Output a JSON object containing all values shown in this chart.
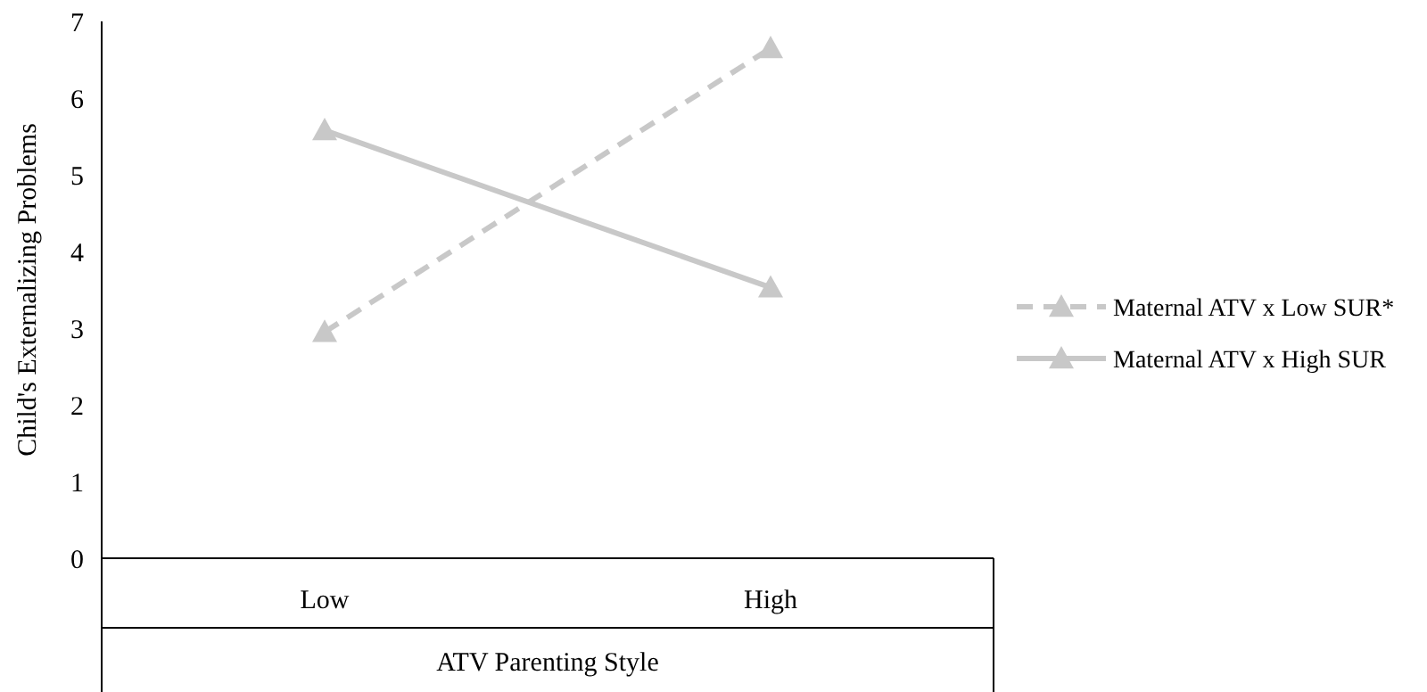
{
  "chart_data": {
    "type": "line",
    "xlabel": "ATV Parenting Style",
    "ylabel": "Child's Externalizing Problems",
    "categories": [
      "Low",
      "High"
    ],
    "ylim": [
      0,
      7
    ],
    "yticks": [
      0,
      1,
      2,
      3,
      4,
      5,
      6,
      7
    ],
    "grid": false,
    "legend": "right",
    "marker": "triangle",
    "series": [
      {
        "name": "Maternal ATV x Low SUR*",
        "color": "#c8c8c8",
        "values": [
          2.95,
          6.65
        ],
        "line_style": "dashed"
      },
      {
        "name": "Maternal ATV x High SUR",
        "color": "#c8c8c8",
        "values": [
          5.58,
          3.53
        ],
        "line_style": "solid"
      }
    ]
  }
}
